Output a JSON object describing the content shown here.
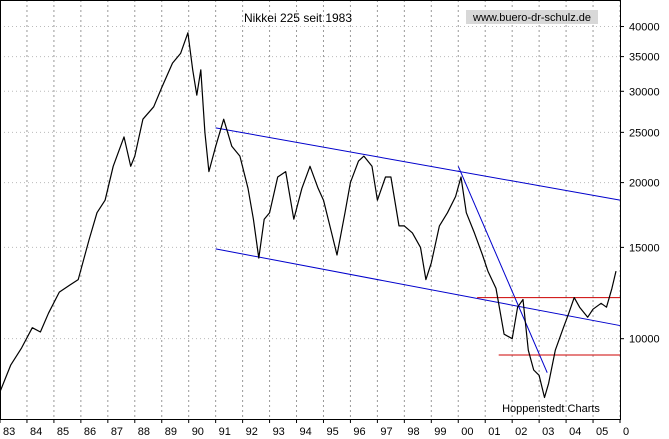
{
  "chart_data": {
    "type": "line",
    "title": "Nikkei 225 seit 1983",
    "watermark": "www.buero-dr-schulz.de",
    "source": "Hoppenstedt Charts",
    "y_scale": "log",
    "ylim": [
      7000,
      45000
    ],
    "y_ticks": [
      10000,
      15000,
      20000,
      25000,
      30000,
      35000,
      40000
    ],
    "x_ticks": [
      "83",
      "84",
      "85",
      "86",
      "87",
      "88",
      "89",
      "90",
      "91",
      "92",
      "93",
      "94",
      "95",
      "96",
      "97",
      "98",
      "99",
      "00",
      "01",
      "02",
      "03",
      "04",
      "05",
      "0"
    ],
    "x_range": [
      1983.0,
      2006.0
    ],
    "grid": true,
    "series": [
      {
        "color": "#000000",
        "points": [
          [
            1983.0,
            7900
          ],
          [
            1983.4,
            8900
          ],
          [
            1983.8,
            9600
          ],
          [
            1984.2,
            10500
          ],
          [
            1984.5,
            10300
          ],
          [
            1984.8,
            11200
          ],
          [
            1985.2,
            12300
          ],
          [
            1985.6,
            12700
          ],
          [
            1985.9,
            13000
          ],
          [
            1986.3,
            15500
          ],
          [
            1986.6,
            17500
          ],
          [
            1986.9,
            18500
          ],
          [
            1987.2,
            21500
          ],
          [
            1987.6,
            24500
          ],
          [
            1987.85,
            21500
          ],
          [
            1988.0,
            22500
          ],
          [
            1988.3,
            26500
          ],
          [
            1988.7,
            28000
          ],
          [
            1989.0,
            30500
          ],
          [
            1989.4,
            34000
          ],
          [
            1989.7,
            35500
          ],
          [
            1989.97,
            38900
          ],
          [
            1990.15,
            33000
          ],
          [
            1990.3,
            29500
          ],
          [
            1990.45,
            33000
          ],
          [
            1990.6,
            25000
          ],
          [
            1990.75,
            21000
          ],
          [
            1991.0,
            23500
          ],
          [
            1991.3,
            26500
          ],
          [
            1991.6,
            23500
          ],
          [
            1991.9,
            22500
          ],
          [
            1992.2,
            19500
          ],
          [
            1992.4,
            17000
          ],
          [
            1992.6,
            14300
          ],
          [
            1992.8,
            17000
          ],
          [
            1993.0,
            17500
          ],
          [
            1993.3,
            20500
          ],
          [
            1993.6,
            21000
          ],
          [
            1993.9,
            17000
          ],
          [
            1994.2,
            19500
          ],
          [
            1994.5,
            21500
          ],
          [
            1994.8,
            19500
          ],
          [
            1995.0,
            18500
          ],
          [
            1995.3,
            16000
          ],
          [
            1995.5,
            14500
          ],
          [
            1995.8,
            17500
          ],
          [
            1996.0,
            20000
          ],
          [
            1996.3,
            22000
          ],
          [
            1996.5,
            22500
          ],
          [
            1996.8,
            21500
          ],
          [
            1997.0,
            18500
          ],
          [
            1997.3,
            20500
          ],
          [
            1997.5,
            20500
          ],
          [
            1997.8,
            16500
          ],
          [
            1998.0,
            16500
          ],
          [
            1998.3,
            16000
          ],
          [
            1998.6,
            15000
          ],
          [
            1998.8,
            13000
          ],
          [
            1999.0,
            14000
          ],
          [
            1999.3,
            16500
          ],
          [
            1999.6,
            17500
          ],
          [
            1999.9,
            18800
          ],
          [
            2000.1,
            20500
          ],
          [
            2000.3,
            17500
          ],
          [
            2000.6,
            16000
          ],
          [
            2000.9,
            14500
          ],
          [
            2001.1,
            13500
          ],
          [
            2001.4,
            12500
          ],
          [
            2001.7,
            10200
          ],
          [
            2002.0,
            10000
          ],
          [
            2002.2,
            11500
          ],
          [
            2002.4,
            11900
          ],
          [
            2002.6,
            9500
          ],
          [
            2002.8,
            8700
          ],
          [
            2003.0,
            8500
          ],
          [
            2003.2,
            7700
          ],
          [
            2003.35,
            8200
          ],
          [
            2003.6,
            9500
          ],
          [
            2003.9,
            10500
          ],
          [
            2004.1,
            11200
          ],
          [
            2004.3,
            12000
          ],
          [
            2004.5,
            11500
          ],
          [
            2004.8,
            11000
          ],
          [
            2005.0,
            11400
          ],
          [
            2005.3,
            11700
          ],
          [
            2005.5,
            11500
          ],
          [
            2005.7,
            12500
          ],
          [
            2005.85,
            13500
          ]
        ]
      }
    ],
    "trend_lines": [
      {
        "color": "#0000cc",
        "from": [
          1991.0,
          25500
        ],
        "to": [
          2006.0,
          18500
        ]
      },
      {
        "color": "#0000cc",
        "from": [
          1991.0,
          14900
        ],
        "to": [
          2006.0,
          10600
        ]
      },
      {
        "color": "#0000cc",
        "from": [
          2000.0,
          21500
        ],
        "to": [
          2003.3,
          8600
        ]
      }
    ],
    "hlines": [
      {
        "color": "#cc0000",
        "y": 12000,
        "from": 2000.7,
        "to": 2006.0
      },
      {
        "color": "#cc0000",
        "y": 9300,
        "from": 2001.5,
        "to": 2006.0
      }
    ]
  }
}
